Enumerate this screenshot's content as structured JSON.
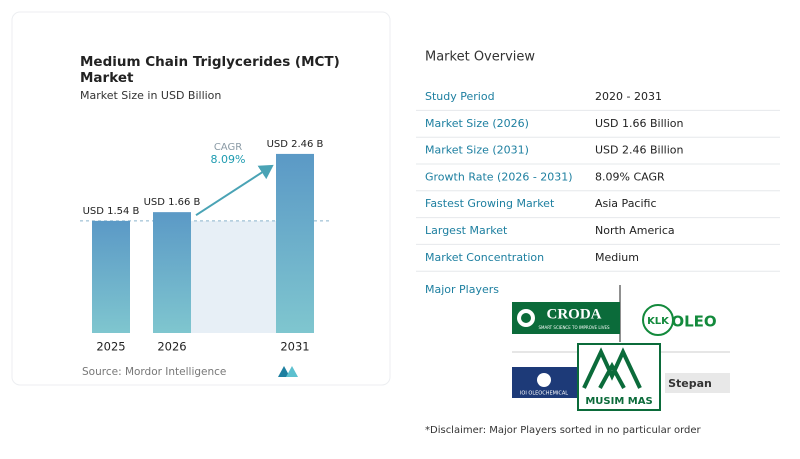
{
  "chart_data": {
    "type": "bar",
    "title": [
      "Medium Chain Triglycerides (MCT)",
      "Market"
    ],
    "subtitle": "Market Size in USD Billion",
    "categories": [
      "2025",
      "2026",
      "2031"
    ],
    "values": [
      1.54,
      1.66,
      2.46
    ],
    "value_labels": [
      "USD 1.54 B",
      "USD 1.66 B",
      "USD 2.46 B"
    ],
    "ylim": [
      0,
      2.5
    ],
    "color": "#5c9fc9",
    "annotation": {
      "label": "CAGR",
      "value": "8.09%"
    },
    "source": "Source: Mordor Intelligence"
  },
  "overview": {
    "title": "Market Overview",
    "rows": [
      [
        "Study Period",
        "2020 - 2031"
      ],
      [
        "Market Size (2026)",
        "USD 1.66 Billion"
      ],
      [
        "Market Size (2031)",
        "USD 2.46 Billion"
      ],
      [
        "Growth Rate (2026 - 2031)",
        "8.09% CAGR"
      ],
      [
        "Fastest Growing Market",
        "Asia Pacific"
      ],
      [
        "Largest Market",
        "North America"
      ],
      [
        "Market Concentration",
        "Medium"
      ]
    ]
  },
  "major_players": {
    "title": "Major Players",
    "logos": [
      "CRODA",
      "SMART SCIENCE TO IMPROVE LIVES",
      "KLK",
      "OLEO",
      "MUSIM MAS",
      "IOI OLEOCHEMICAL",
      "Stepan"
    ]
  },
  "disclaimer": "*Disclaimer: Major Players sorted in no particular order"
}
